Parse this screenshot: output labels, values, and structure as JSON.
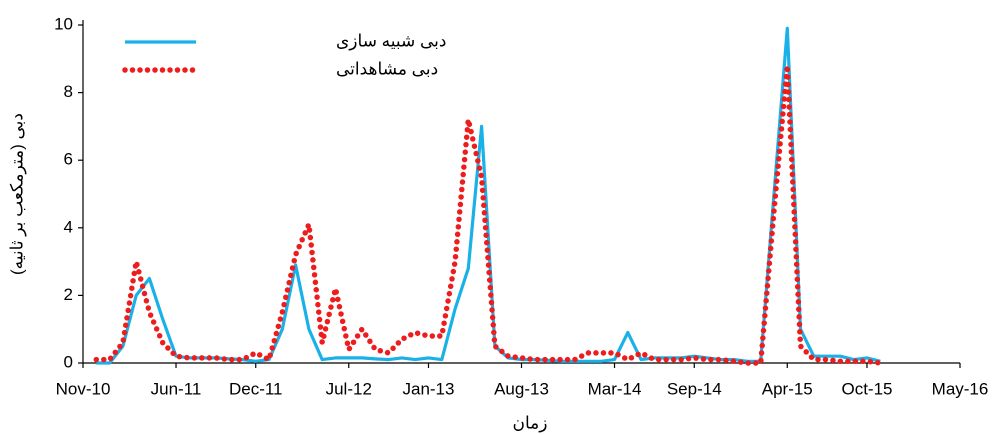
{
  "chart_data": {
    "type": "line",
    "x_label": "زمان",
    "y_label": "دبی (مترمکعب بر ثانیه)",
    "x": [
      "2010-12",
      "2011-01",
      "2011-02",
      "2011-03",
      "2011-04",
      "2011-05",
      "2011-06",
      "2011-07",
      "2011-08",
      "2011-09",
      "2011-10",
      "2011-11",
      "2011-12",
      "2012-01",
      "2012-02",
      "2012-03",
      "2012-04",
      "2012-05",
      "2012-06",
      "2012-07",
      "2012-08",
      "2012-09",
      "2012-10",
      "2012-11",
      "2012-12",
      "2013-01",
      "2013-02",
      "2013-03",
      "2013-04",
      "2013-05",
      "2013-06",
      "2013-07",
      "2013-08",
      "2013-09",
      "2013-10",
      "2013-11",
      "2013-12",
      "2014-01",
      "2014-02",
      "2014-03",
      "2014-04",
      "2014-05",
      "2014-06",
      "2014-07",
      "2014-08",
      "2014-09",
      "2014-10",
      "2014-11",
      "2014-12",
      "2015-01",
      "2015-02",
      "2015-03",
      "2015-04",
      "2015-05",
      "2015-06",
      "2015-07",
      "2015-08",
      "2015-09",
      "2015-10",
      "2015-11"
    ],
    "series": [
      {
        "name": "دبی شبیه سازی",
        "color": "#1ab0e8",
        "style": "solid",
        "values": [
          0,
          0,
          0.5,
          2.0,
          2.5,
          1.3,
          0.2,
          0.15,
          0.15,
          0.15,
          0.12,
          0.1,
          0.05,
          0.1,
          1.0,
          2.9,
          1.0,
          0.1,
          0.15,
          0.15,
          0.15,
          0.12,
          0.1,
          0.15,
          0.1,
          0.15,
          0.1,
          1.6,
          2.8,
          7.0,
          0.5,
          0.15,
          0.1,
          0.1,
          0.08,
          0.05,
          0.05,
          0.05,
          0.05,
          0.1,
          0.9,
          0.1,
          0.15,
          0.15,
          0.15,
          0.2,
          0.15,
          0.1,
          0.1,
          0.05,
          0.05,
          5.0,
          9.9,
          1.0,
          0.2,
          0.2,
          0.2,
          0.1,
          0.15,
          0.05
        ]
      },
      {
        "name": "دبی مشاهداتی",
        "color": "#ee1c1c",
        "style": "dotted",
        "values": [
          0.1,
          0.1,
          0.6,
          3.0,
          1.5,
          0.6,
          0.2,
          0.15,
          0.15,
          0.15,
          0.1,
          0.1,
          0.3,
          0.1,
          1.5,
          3.2,
          4.1,
          0.6,
          2.2,
          0.4,
          1.0,
          0.4,
          0.3,
          0.7,
          0.9,
          0.8,
          0.8,
          3.0,
          7.2,
          5.5,
          0.5,
          0.2,
          0.15,
          0.1,
          0.1,
          0.1,
          0.1,
          0.3,
          0.3,
          0.3,
          0.1,
          0.3,
          0.1,
          0.1,
          0.1,
          0.15,
          0.1,
          0.1,
          0.05,
          0,
          0,
          4.5,
          8.8,
          0.5,
          0.1,
          0.1,
          0.05,
          0.05,
          0.05,
          0
        ]
      }
    ],
    "xlim": [
      "2010-11",
      "2016-05"
    ],
    "xticks": [
      {
        "value": "2010-11",
        "label": "Nov-10"
      },
      {
        "value": "2011-06",
        "label": "Jun-11"
      },
      {
        "value": "2011-12",
        "label": "Dec-11"
      },
      {
        "value": "2012-07",
        "label": "Jul-12"
      },
      {
        "value": "2013-01",
        "label": "Jan-13"
      },
      {
        "value": "2013-08",
        "label": "Aug-13"
      },
      {
        "value": "2014-03",
        "label": "Mar-14"
      },
      {
        "value": "2014-09",
        "label": "Sep-14"
      },
      {
        "value": "2015-04",
        "label": "Apr-15"
      },
      {
        "value": "2015-10",
        "label": "Oct-15"
      },
      {
        "value": "2016-05",
        "label": "May-16"
      }
    ],
    "ylim": [
      0,
      10
    ],
    "yticks": [
      0,
      2,
      4,
      6,
      8,
      10
    ],
    "grid": false,
    "legend": "top-left"
  }
}
